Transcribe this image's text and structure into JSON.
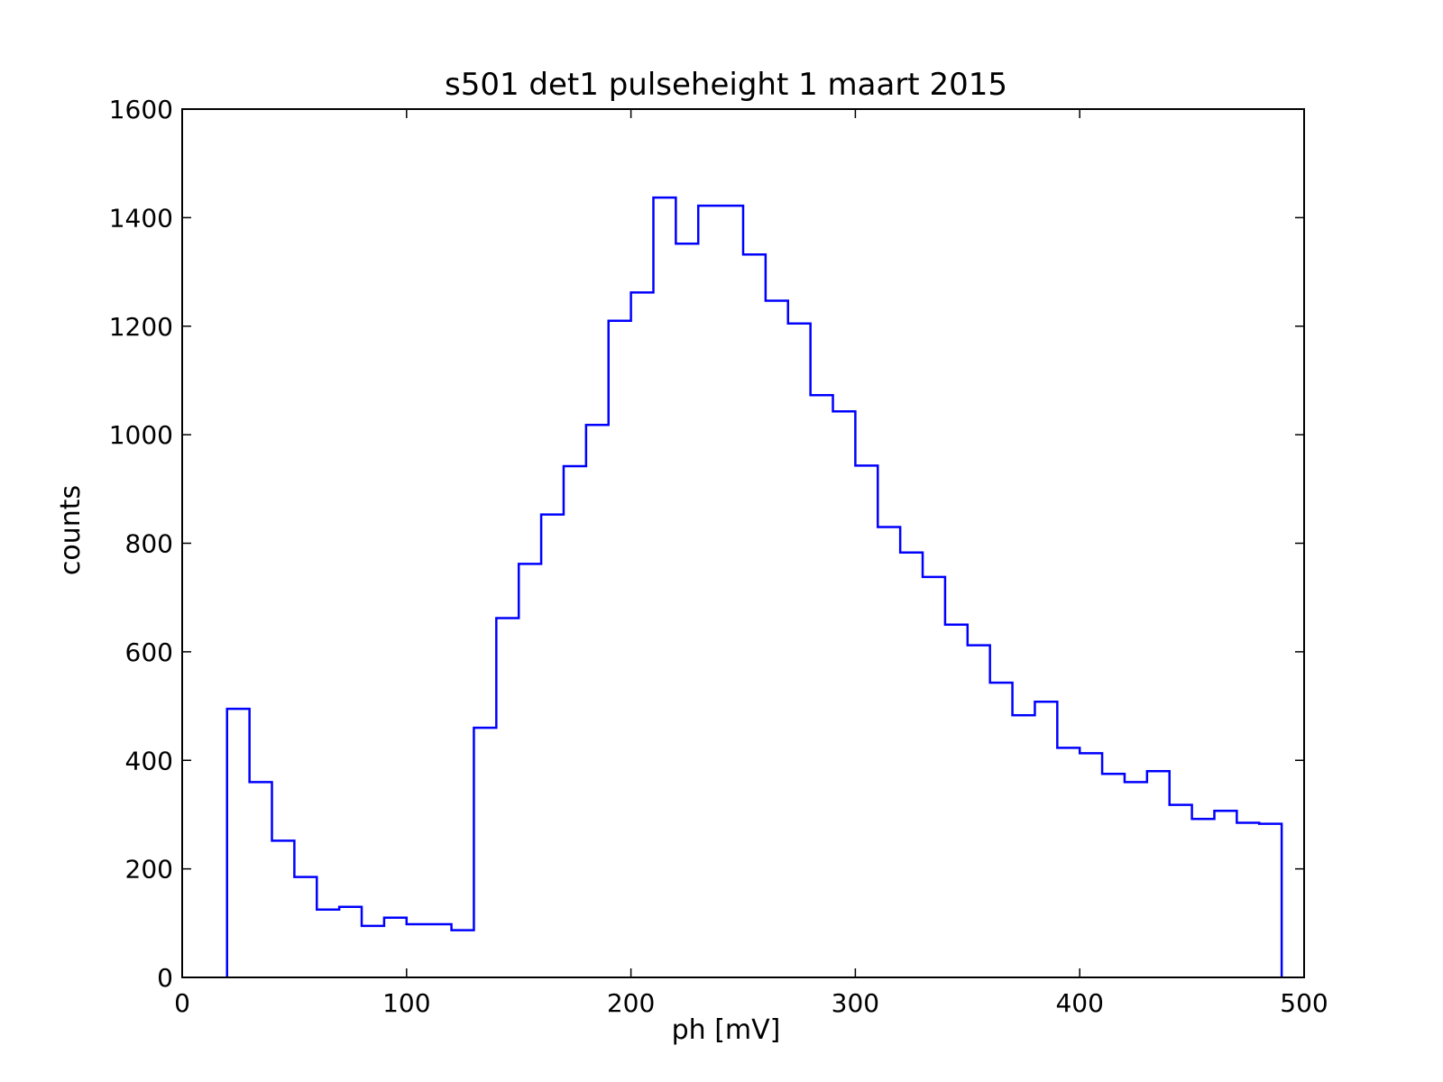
{
  "chart_data": {
    "type": "histogram-step",
    "title": "s501 det1 pulseheight 1 maart 2015",
    "xlabel": "ph [mV]",
    "ylabel": "counts",
    "xlim": [
      0,
      500
    ],
    "ylim": [
      0,
      1600
    ],
    "xticks": [
      0,
      100,
      200,
      300,
      400,
      500
    ],
    "yticks": [
      0,
      200,
      400,
      600,
      800,
      1000,
      1200,
      1400,
      1600
    ],
    "grid": false,
    "line_color": "#0000ff",
    "bin_edges": [
      20,
      30,
      40,
      50,
      60,
      70,
      80,
      90,
      100,
      110,
      120,
      130,
      140,
      150,
      160,
      170,
      180,
      190,
      200,
      210,
      220,
      230,
      240,
      250,
      260,
      270,
      280,
      290,
      300,
      310,
      320,
      330,
      340,
      350,
      360,
      370,
      380,
      390,
      400,
      410,
      420,
      430,
      440,
      450,
      460,
      470,
      480,
      490
    ],
    "counts": [
      495,
      360,
      252,
      185,
      125,
      130,
      95,
      110,
      98,
      98,
      87,
      460,
      662,
      762,
      853,
      942,
      1018,
      1210,
      1262,
      1437,
      1352,
      1422,
      1422,
      1332,
      1247,
      1205,
      1073,
      1043,
      943,
      830,
      783,
      738,
      650,
      612,
      543,
      483,
      508,
      423,
      413,
      375,
      360,
      380,
      318,
      292,
      307,
      285,
      283
    ]
  }
}
